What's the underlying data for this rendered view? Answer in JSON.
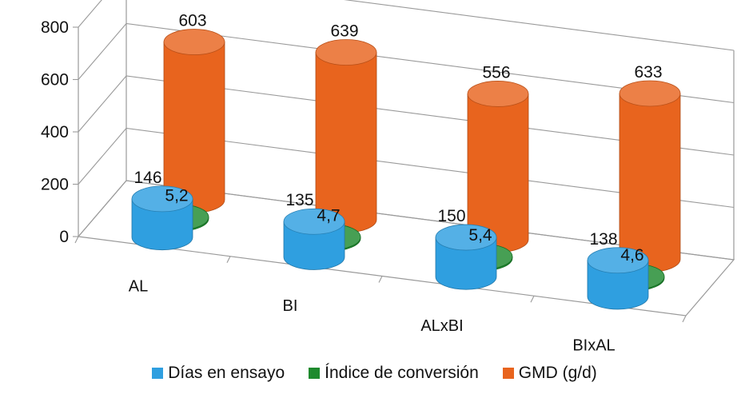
{
  "chart_data": {
    "type": "bar",
    "style": "3d-cylinder",
    "categories": [
      "AL",
      "BI",
      "ALxBI",
      "BIxAL"
    ],
    "series": [
      {
        "name": "Días en ensayo",
        "values": [
          146,
          135,
          150,
          138
        ],
        "value_labels": [
          "146",
          "135",
          "150",
          "138"
        ],
        "color": "#2f9fe0"
      },
      {
        "name": "Índice de conversión",
        "values": [
          5.2,
          4.7,
          5.4,
          4.6
        ],
        "value_labels": [
          "5,2",
          "4,7",
          "5,4",
          "4,6"
        ],
        "color": "#1e8a2e"
      },
      {
        "name": "GMD (g/d)",
        "values": [
          603,
          639,
          556,
          633
        ],
        "value_labels": [
          "603",
          "639",
          "556",
          "633"
        ],
        "color": "#e8641e"
      }
    ],
    "ylim": [
      0,
      800
    ],
    "yticks": [
      "0",
      "200",
      "400",
      "600",
      "800"
    ],
    "grid": true,
    "legend_position": "bottom"
  }
}
